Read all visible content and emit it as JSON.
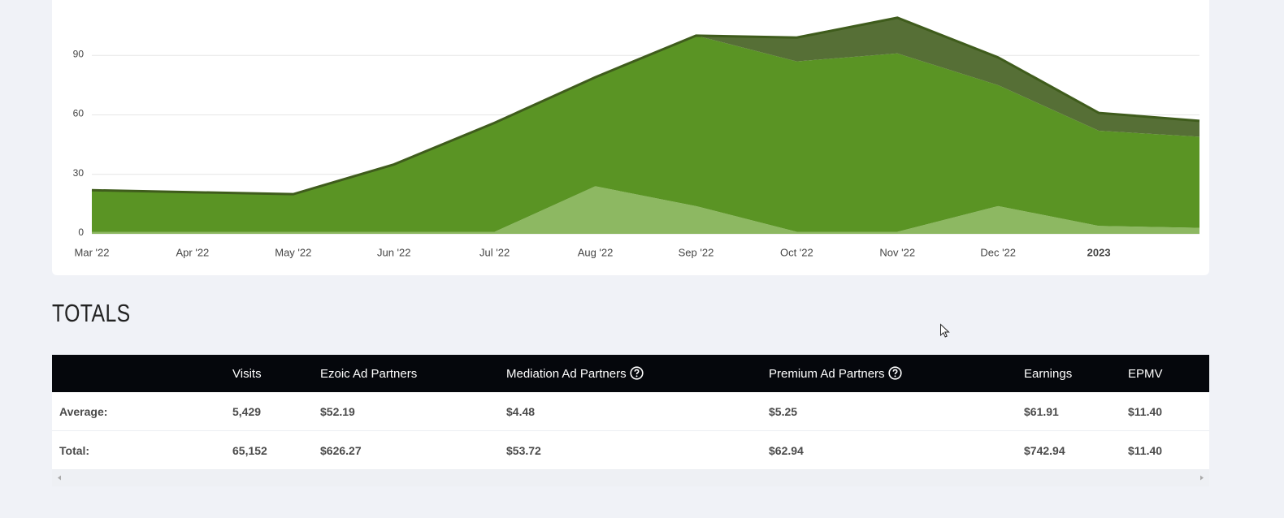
{
  "chart_data": {
    "type": "area",
    "categories": [
      "Mar '22",
      "Apr '22",
      "May '22",
      "Jun '22",
      "Jul '22",
      "Aug '22",
      "Sep '22",
      "Oct '22",
      "Nov '22",
      "Dec '22",
      "2023",
      null
    ],
    "series": [
      {
        "color": "#8db862",
        "values": [
          1,
          1,
          1,
          1,
          1,
          24,
          14,
          1,
          1,
          14,
          4,
          3
        ]
      },
      {
        "color": "#5a9424",
        "values": [
          21,
          20,
          19,
          34,
          55,
          55,
          86,
          86,
          90,
          61,
          48,
          46
        ]
      },
      {
        "color": "#566f36",
        "values": [
          0,
          0,
          0,
          0,
          0,
          0,
          0,
          12,
          18,
          14,
          9,
          8
        ]
      }
    ],
    "stacked": true,
    "ylim": [
      0,
      120
    ],
    "yticks": [
      0,
      30,
      60,
      90
    ],
    "grid": true
  },
  "totals": {
    "title": "TOTALS",
    "columns": [
      "Visits",
      "Ezoic Ad Partners",
      "Mediation Ad Partners",
      "Premium Ad Partners",
      "Earnings",
      "EPMV"
    ],
    "rows": [
      [
        "Average:",
        "5,429",
        "$52.19",
        "$4.48",
        "$5.25",
        "$61.91",
        "$11.40"
      ],
      [
        "Total:",
        "65,152",
        "$626.27",
        "$53.72",
        "$62.94",
        "$742.94",
        "$11.40"
      ]
    ]
  }
}
